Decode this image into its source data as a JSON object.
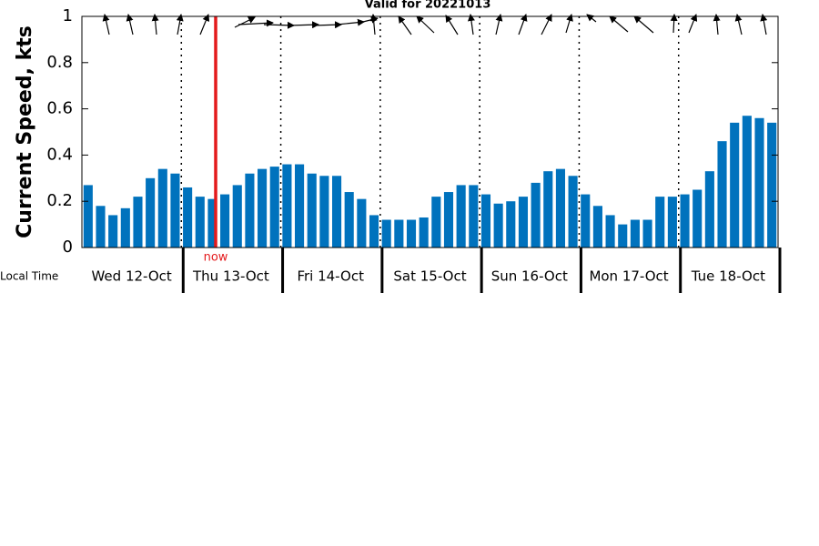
{
  "chart_data": {
    "type": "bar",
    "title": "Valid for 20221013",
    "y_label": "Current Speed, kts",
    "x_label": "Local Time",
    "now_label": "now",
    "day_labels": [
      "Wed 12-Oct",
      "Thu 13-Oct",
      "Fri 14-Oct",
      "Sat 15-Oct",
      "Sun 16-Oct",
      "Mon 17-Oct",
      "Tue 18-Oct"
    ],
    "categories": [
      null,
      null,
      null,
      null,
      null,
      null,
      null,
      null,
      null,
      null,
      null,
      null,
      null,
      null,
      null,
      null,
      null,
      null,
      null,
      null,
      null,
      null,
      null,
      null,
      null,
      null,
      null,
      null,
      null,
      null,
      null,
      null,
      null,
      null,
      null,
      null,
      null,
      null,
      null,
      null,
      null,
      null,
      null,
      null,
      null,
      null,
      null,
      null,
      null,
      null,
      null,
      null,
      null,
      null,
      null,
      null
    ],
    "values": [
      0.27,
      0.18,
      0.14,
      0.17,
      0.22,
      0.3,
      0.34,
      0.32,
      0.26,
      0.22,
      0.21,
      0.23,
      0.27,
      0.32,
      0.34,
      0.35,
      0.36,
      0.36,
      0.32,
      0.31,
      0.31,
      0.24,
      0.21,
      0.14,
      0.12,
      0.12,
      0.12,
      0.13,
      0.22,
      0.24,
      0.27,
      0.27,
      0.23,
      0.19,
      0.2,
      0.22,
      0.28,
      0.33,
      0.34,
      0.31,
      0.23,
      0.18,
      0.14,
      0.1,
      0.12,
      0.12,
      0.22,
      0.22,
      0.23,
      0.25,
      0.33,
      0.46,
      0.54,
      0.57,
      0.56,
      0.54
    ],
    "color": "#0072bd",
    "ylim": [
      0,
      1
    ],
    "yticks": [
      0,
      0.2,
      0.4,
      0.6,
      0.8,
      1
    ]
  }
}
